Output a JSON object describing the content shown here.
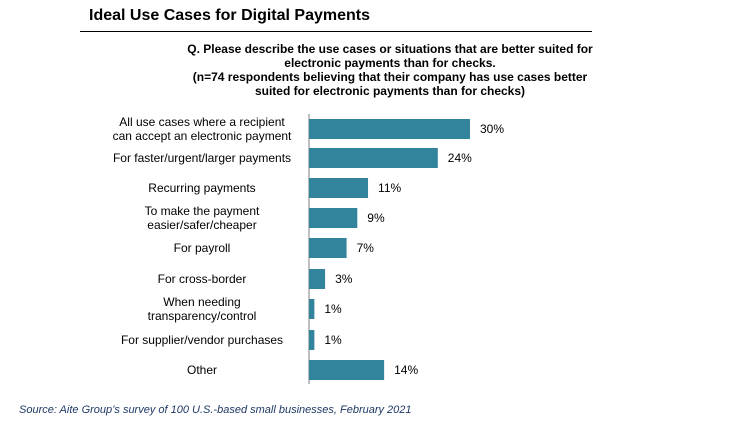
{
  "title": "Ideal Use Cases for Digital Payments",
  "question_lines": [
    "Q. Please describe the use cases or situations that are better suited for",
    "electronic payments than for checks.",
    "(n=74 respondents believing that their company has use cases better",
    "suited for electronic payments than for checks)"
  ],
  "source": "Source: Aite Group’s survey of 100 U.S.-based small businesses, February 2021",
  "colors": {
    "bar": "#31849b",
    "axis": "#7f7f7f",
    "source_text": "#1f3864"
  },
  "chart_data": {
    "type": "bar",
    "orientation": "horizontal",
    "categories": [
      [
        "All use cases where a recipient",
        "can accept an electronic payment"
      ],
      [
        "For faster/urgent/larger payments"
      ],
      [
        "Recurring payments"
      ],
      [
        "To make the payment",
        "easier/safer/cheaper"
      ],
      [
        "For payroll"
      ],
      [
        "For cross-border"
      ],
      [
        "When needing",
        "transparency/control"
      ],
      [
        "For supplier/vendor purchases"
      ],
      [
        "Other"
      ]
    ],
    "values": [
      30,
      24,
      11,
      9,
      7,
      3,
      1,
      1,
      14
    ],
    "value_labels": [
      "30%",
      "24%",
      "11%",
      "9%",
      "7%",
      "3%",
      "1%",
      "1%",
      "14%"
    ],
    "title": "",
    "xlabel": "",
    "ylabel": "",
    "xlim": [
      0,
      30
    ],
    "grid": false,
    "legend": "none"
  }
}
